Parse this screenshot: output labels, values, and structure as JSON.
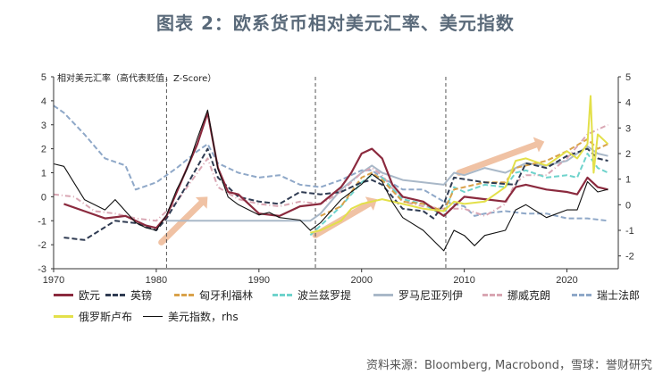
{
  "title": "图表 2：欧系货币相对美元汇率、美元指数",
  "source": "资料来源：Bloomberg, Macrobond，雪球：誉财研究",
  "chart_data": {
    "type": "line",
    "inner_label": "相对美元汇率（高代表贬值，Z-Score）",
    "xlim": [
      1970,
      2025
    ],
    "x_ticks": [
      "1970",
      "1980",
      "1990",
      "2000",
      "2010",
      "2020"
    ],
    "x_tick_values": [
      1970,
      1980,
      1990,
      2000,
      2010,
      2020
    ],
    "ylim_left": [
      -3,
      5
    ],
    "y_ticks_left": [
      "5",
      "4",
      "3",
      "2",
      "1",
      "0",
      "-1",
      "-2",
      "-3"
    ],
    "y_tick_values_left": [
      5,
      4,
      3,
      2,
      1,
      0,
      -1,
      -2,
      -3
    ],
    "ylim_right": [
      -2.5,
      5
    ],
    "y_ticks_right": [
      "5",
      "4",
      "3",
      "2",
      "1",
      "0",
      "-1",
      "-2"
    ],
    "y_tick_values_right": [
      5,
      4,
      3,
      2,
      1,
      0,
      -1,
      -2
    ],
    "vlines": [
      1981,
      1995.5,
      2008.2
    ],
    "series": [
      {
        "name": "欧元",
        "color": "#8b2a3e",
        "style": "solid",
        "width": 2.2,
        "axis": "left",
        "x": [
          1971,
          1973,
          1975,
          1977,
          1979,
          1980,
          1981,
          1982,
          1983,
          1984,
          1985,
          1986,
          1987,
          1988,
          1990,
          1992,
          1994,
          1996,
          1998,
          1999,
          2000,
          2001,
          2002,
          2003,
          2004,
          2006,
          2008,
          2009,
          2010,
          2012,
          2014,
          2015,
          2016,
          2018,
          2020,
          2021,
          2022,
          2023,
          2024
        ],
        "y": [
          -0.3,
          -0.6,
          -0.9,
          -0.8,
          -1.2,
          -1.3,
          -0.8,
          0.2,
          1.2,
          2.2,
          3.5,
          1.2,
          0.2,
          0.1,
          -0.7,
          -0.8,
          -0.4,
          -0.3,
          0.4,
          1.0,
          1.8,
          2.0,
          1.6,
          0.5,
          0.0,
          -0.2,
          -0.8,
          -0.4,
          0.0,
          -0.1,
          -0.2,
          0.4,
          0.5,
          0.3,
          0.2,
          0.1,
          0.8,
          0.4,
          0.3
        ]
      },
      {
        "name": "英镑",
        "color": "#2f3b52",
        "style": "dash",
        "width": 2,
        "axis": "left",
        "x": [
          1971,
          1973,
          1976,
          1978,
          1980,
          1981,
          1983,
          1985,
          1986,
          1988,
          1990,
          1992,
          1994,
          1996,
          1998,
          2000,
          2001,
          2002,
          2004,
          2006,
          2007,
          2008,
          2009,
          2012,
          2015,
          2016,
          2018,
          2020,
          2022,
          2023,
          2024
        ],
        "y": [
          -1.7,
          -1.8,
          -1.0,
          -1.1,
          -1.4,
          -0.9,
          0.5,
          2.0,
          0.8,
          0.0,
          -0.2,
          -0.3,
          0.2,
          0.1,
          0.2,
          0.6,
          0.7,
          0.5,
          -0.5,
          -0.6,
          -0.9,
          -0.3,
          0.8,
          0.6,
          0.5,
          1.4,
          1.2,
          1.7,
          2.0,
          1.6,
          1.5
        ]
      },
      {
        "name": "匈牙利福林",
        "color": "#d9a24a",
        "style": "dash",
        "width": 2,
        "axis": "left",
        "x": [
          1996,
          1998,
          2000,
          2001,
          2002,
          2004,
          2006,
          2008,
          2009,
          2010,
          2012,
          2014,
          2015,
          2016,
          2018,
          2020,
          2022,
          2023,
          2024
        ],
        "y": [
          -0.8,
          -0.4,
          0.8,
          1.0,
          0.7,
          -0.2,
          -0.3,
          -0.6,
          0.3,
          0.4,
          0.6,
          0.6,
          1.2,
          1.3,
          1.5,
          1.9,
          2.4,
          2.0,
          2.2
        ]
      },
      {
        "name": "波兰兹罗提",
        "color": "#6fd3cc",
        "style": "dash",
        "width": 2,
        "axis": "left",
        "x": [
          1995,
          1996,
          1998,
          2000,
          2001,
          2002,
          2004,
          2006,
          2008,
          2009,
          2010,
          2012,
          2014,
          2015,
          2016,
          2018,
          2020,
          2021,
          2022,
          2023,
          2024
        ],
        "y": [
          -1.6,
          -1.2,
          -0.4,
          0.6,
          0.9,
          0.8,
          -0.1,
          -0.3,
          -0.8,
          0.4,
          0.2,
          0.5,
          0.4,
          1.0,
          1.1,
          0.8,
          0.9,
          0.8,
          1.8,
          1.2,
          1.0
        ]
      },
      {
        "name": "罗马尼亚列伊",
        "color": "#a9b8c8",
        "style": "solid",
        "width": 2,
        "axis": "left",
        "x": [
          1981,
          1985,
          1990,
          1995,
          1996,
          1998,
          2000,
          2001,
          2002,
          2004,
          2006,
          2008,
          2009,
          2010,
          2012,
          2014,
          2016,
          2018,
          2020,
          2022,
          2023,
          2024
        ],
        "y": [
          -1.0,
          -1.0,
          -1.0,
          -1.0,
          -0.7,
          0.3,
          1.0,
          1.3,
          1.0,
          0.7,
          0.6,
          0.5,
          1.0,
          0.9,
          1.2,
          1.0,
          1.4,
          1.3,
          1.5,
          2.1,
          1.8,
          1.7
        ]
      },
      {
        "name": "挪威克朗",
        "color": "#d9a6b3",
        "style": "dashdot",
        "width": 2,
        "axis": "left",
        "x": [
          1970,
          1972,
          1974,
          1976,
          1978,
          1980,
          1982,
          1984,
          1985,
          1986,
          1988,
          1990,
          1992,
          1994,
          1996,
          1998,
          2000,
          2001,
          2002,
          2004,
          2006,
          2008,
          2010,
          2012,
          2014,
          2015,
          2016,
          2018,
          2020,
          2022,
          2023,
          2024
        ],
        "y": [
          0.1,
          0.0,
          -0.6,
          -0.7,
          -0.9,
          -1.0,
          -0.2,
          1.0,
          1.6,
          0.4,
          -0.1,
          -0.3,
          -0.4,
          -0.2,
          -0.3,
          0.2,
          1.0,
          1.2,
          0.9,
          -0.2,
          -0.4,
          -0.5,
          -0.5,
          -0.8,
          -0.3,
          0.6,
          0.9,
          0.9,
          1.6,
          2.6,
          2.8,
          3.0
        ]
      },
      {
        "name": "瑞士法郎",
        "color": "#8fa8c8",
        "style": "dash",
        "width": 2,
        "axis": "left",
        "x": [
          1970,
          1971,
          1973,
          1975,
          1977,
          1978,
          1980,
          1982,
          1984,
          1985,
          1986,
          1988,
          1990,
          1992,
          1994,
          1996,
          1998,
          2000,
          2001,
          2002,
          2004,
          2006,
          2008,
          2010,
          2011,
          2012,
          2014,
          2016,
          2018,
          2020,
          2022,
          2024
        ],
        "y": [
          3.8,
          3.5,
          2.6,
          1.6,
          1.3,
          0.3,
          0.6,
          1.2,
          1.9,
          2.2,
          1.4,
          1.0,
          0.8,
          0.9,
          0.5,
          0.4,
          0.7,
          1.1,
          1.1,
          0.8,
          0.3,
          0.3,
          -0.2,
          -0.4,
          -0.8,
          -0.7,
          -0.6,
          -0.7,
          -0.7,
          -0.9,
          -0.9,
          -1.0
        ]
      },
      {
        "name": "俄罗斯卢布",
        "color": "#e3e04a",
        "style": "solid",
        "width": 2,
        "axis": "left",
        "x": [
          1995,
          1996,
          1998,
          1999,
          2000,
          2002,
          2004,
          2006,
          2008,
          2009,
          2010,
          2012,
          2014,
          2015,
          2016,
          2018,
          2020,
          2021,
          2022,
          2022.3,
          2022.6,
          2023,
          2024
        ],
        "y": [
          -1.5,
          -1.4,
          -1.0,
          -0.5,
          -0.3,
          -0.1,
          -0.3,
          -0.5,
          -0.6,
          -0.2,
          -0.3,
          -0.2,
          0.4,
          1.5,
          1.6,
          1.3,
          1.9,
          1.6,
          2.2,
          4.2,
          1.0,
          2.6,
          2.2
        ]
      },
      {
        "name": "美元指数，rhs",
        "color": "#111111",
        "style": "solid",
        "width": 1.1,
        "axis": "right",
        "x": [
          1970,
          1971,
          1973,
          1975,
          1976,
          1978,
          1979,
          1980,
          1981,
          1982,
          1983,
          1984,
          1985,
          1986,
          1987,
          1988,
          1990,
          1991,
          1992,
          1994,
          1995,
          1996,
          1998,
          2000,
          2001,
          2002,
          2003,
          2004,
          2006,
          2007,
          2008,
          2009,
          2010,
          2011,
          2012,
          2014,
          2015,
          2016,
          2018,
          2020,
          2021,
          2022,
          2023,
          2024
        ],
        "y": [
          1.6,
          1.5,
          0.2,
          -0.2,
          0.2,
          -0.7,
          -0.9,
          -1.0,
          -0.4,
          0.6,
          1.4,
          2.6,
          3.7,
          1.4,
          0.3,
          0.0,
          -0.4,
          -0.3,
          -0.5,
          -0.6,
          -1.0,
          -0.7,
          0.2,
          0.8,
          1.2,
          0.9,
          0.1,
          -0.5,
          -1.0,
          -1.4,
          -1.8,
          -1.0,
          -1.2,
          -1.6,
          -1.2,
          -1.0,
          -0.2,
          0.0,
          -0.5,
          -0.2,
          -0.2,
          0.9,
          0.5,
          0.6
        ]
      }
    ],
    "legend_placement": "bottom",
    "grid": false
  }
}
